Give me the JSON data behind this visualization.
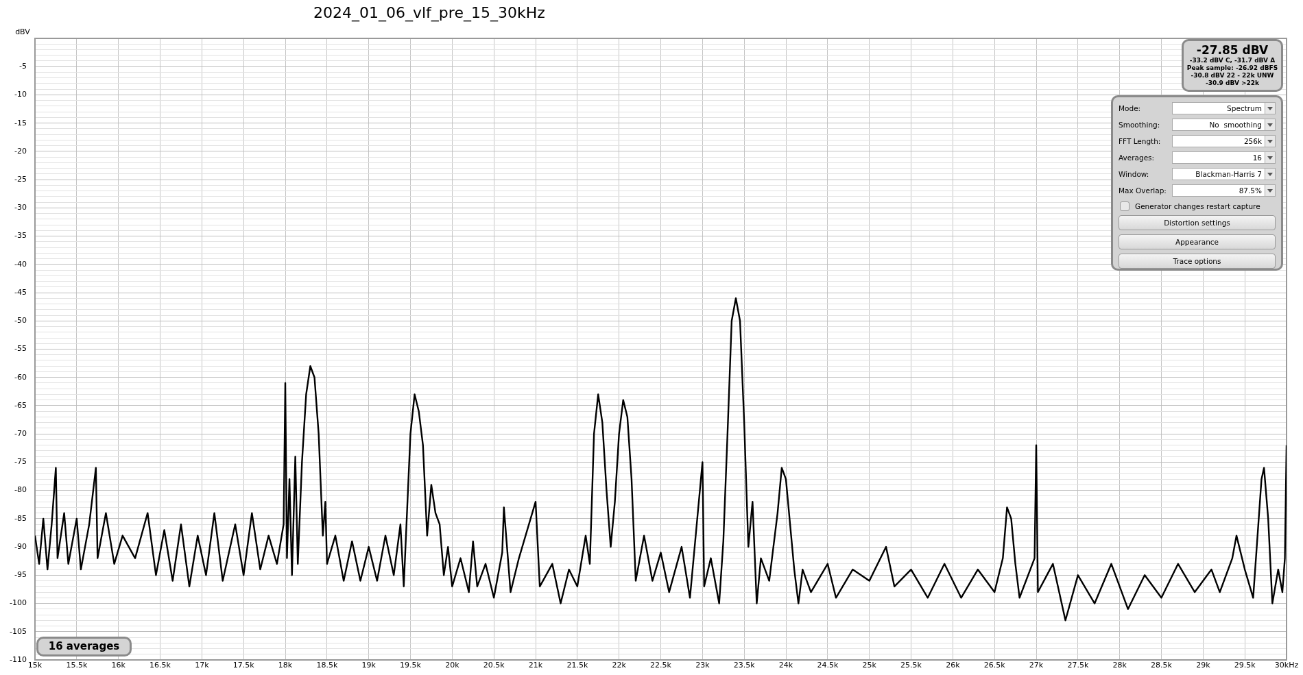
{
  "chart_data": {
    "type": "line",
    "title": "2024_01_06_vlf_pre_15_30kHz",
    "ylabel": "dBV",
    "x": [
      15.0,
      15.05,
      15.1,
      15.15,
      15.2,
      15.25,
      15.27,
      15.35,
      15.4,
      15.5,
      15.55,
      15.65,
      15.73,
      15.75,
      15.85,
      15.95,
      16.05,
      16.2,
      16.35,
      16.45,
      16.55,
      16.65,
      16.75,
      16.85,
      16.95,
      17.05,
      17.15,
      17.25,
      17.4,
      17.5,
      17.6,
      17.7,
      17.8,
      17.9,
      17.98,
      18.0,
      18.02,
      18.05,
      18.08,
      18.12,
      18.15,
      18.2,
      18.25,
      18.3,
      18.35,
      18.4,
      18.45,
      18.48,
      18.5,
      18.6,
      18.7,
      18.8,
      18.9,
      19.0,
      19.1,
      19.2,
      19.3,
      19.38,
      19.42,
      19.5,
      19.55,
      19.6,
      19.65,
      19.7,
      19.75,
      19.8,
      19.85,
      19.9,
      19.95,
      20.0,
      20.1,
      20.2,
      20.25,
      20.3,
      20.4,
      20.5,
      20.6,
      20.62,
      20.7,
      20.8,
      21.0,
      21.05,
      21.2,
      21.3,
      21.4,
      21.5,
      21.6,
      21.65,
      21.7,
      21.75,
      21.8,
      21.85,
      21.9,
      21.95,
      22.0,
      22.05,
      22.1,
      22.15,
      22.2,
      22.3,
      22.4,
      22.5,
      22.6,
      22.75,
      22.85,
      23.0,
      23.02,
      23.1,
      23.2,
      23.25,
      23.3,
      23.35,
      23.4,
      23.45,
      23.5,
      23.55,
      23.6,
      23.65,
      23.7,
      23.8,
      23.9,
      23.95,
      24.0,
      24.05,
      24.1,
      24.15,
      24.2,
      24.3,
      24.5,
      24.6,
      24.8,
      25.0,
      25.2,
      25.3,
      25.5,
      25.7,
      25.9,
      26.1,
      26.3,
      26.5,
      26.6,
      26.65,
      26.7,
      26.75,
      26.8,
      26.98,
      27.0,
      27.02,
      27.2,
      27.35,
      27.5,
      27.7,
      27.9,
      28.1,
      28.3,
      28.5,
      28.7,
      28.9,
      29.1,
      29.2,
      29.35,
      29.4,
      29.5,
      29.6,
      29.7,
      29.73,
      29.78,
      29.83,
      29.9,
      29.95,
      29.98,
      30.0
    ],
    "series": [
      {
        "color": "#000000",
        "values": [
          -88,
          -93,
          -85,
          -94,
          -86,
          -76,
          -92,
          -84,
          -93,
          -85,
          -94,
          -86,
          -76,
          -92,
          -84,
          -93,
          -88,
          -92,
          -84,
          -95,
          -87,
          -96,
          -86,
          -97,
          -88,
          -95,
          -84,
          -96,
          -86,
          -95,
          -84,
          -94,
          -88,
          -93,
          -86,
          -61,
          -92,
          -78,
          -95,
          -74,
          -93,
          -75,
          -63,
          -58,
          -60,
          -70,
          -88,
          -82,
          -93,
          -88,
          -96,
          -89,
          -96,
          -90,
          -96,
          -88,
          -95,
          -86,
          -97,
          -70,
          -63,
          -66,
          -72,
          -88,
          -79,
          -84,
          -86,
          -95,
          -90,
          -97,
          -92,
          -98,
          -89,
          -97,
          -93,
          -99,
          -91,
          -83,
          -98,
          -92,
          -82,
          -97,
          -93,
          -100,
          -94,
          -97,
          -88,
          -93,
          -70,
          -63,
          -68,
          -80,
          -90,
          -82,
          -70,
          -64,
          -67,
          -78,
          -96,
          -88,
          -96,
          -91,
          -98,
          -90,
          -99,
          -75,
          -97,
          -92,
          -100,
          -89,
          -70,
          -50,
          -46,
          -50,
          -68,
          -90,
          -82,
          -100,
          -92,
          -96,
          -84,
          -76,
          -78,
          -86,
          -94,
          -100,
          -94,
          -98,
          -93,
          -99,
          -94,
          -96,
          -90,
          -97,
          -94,
          -99,
          -93,
          -99,
          -94,
          -98,
          -92,
          -83,
          -85,
          -93,
          -99,
          -92,
          -72,
          -98,
          -93,
          -103,
          -95,
          -100,
          -93,
          -101,
          -95,
          -99,
          -93,
          -98,
          -94,
          -98,
          -92,
          -88,
          -94,
          -99,
          -78,
          -76,
          -85,
          -100,
          -94,
          -98,
          -92,
          -72
        ]
      }
    ],
    "xlim": [
      15,
      30
    ],
    "xticks": [
      {
        "value": 15,
        "label": "15k"
      },
      {
        "value": 15.5,
        "label": "15.5k"
      },
      {
        "value": 16,
        "label": "16k"
      },
      {
        "value": 16.5,
        "label": "16.5k"
      },
      {
        "value": 17,
        "label": "17k"
      },
      {
        "value": 17.5,
        "label": "17.5k"
      },
      {
        "value": 18,
        "label": "18k"
      },
      {
        "value": 18.5,
        "label": "18.5k"
      },
      {
        "value": 19,
        "label": "19k"
      },
      {
        "value": 19.5,
        "label": "19.5k"
      },
      {
        "value": 20,
        "label": "20k"
      },
      {
        "value": 20.5,
        "label": "20.5k"
      },
      {
        "value": 21,
        "label": "21k"
      },
      {
        "value": 21.5,
        "label": "21.5k"
      },
      {
        "value": 22,
        "label": "22k"
      },
      {
        "value": 22.5,
        "label": "22.5k"
      },
      {
        "value": 23,
        "label": "23k"
      },
      {
        "value": 23.5,
        "label": "23.5k"
      },
      {
        "value": 24,
        "label": "24k"
      },
      {
        "value": 24.5,
        "label": "24.5k"
      },
      {
        "value": 25,
        "label": "25k"
      },
      {
        "value": 25.5,
        "label": "25.5k"
      },
      {
        "value": 26,
        "label": "26k"
      },
      {
        "value": 26.5,
        "label": "26.5k"
      },
      {
        "value": 27,
        "label": "27k"
      },
      {
        "value": 27.5,
        "label": "27.5k"
      },
      {
        "value": 28,
        "label": "28k"
      },
      {
        "value": 28.5,
        "label": "28.5k"
      },
      {
        "value": 29,
        "label": "29k"
      },
      {
        "value": 29.5,
        "label": "29.5k"
      },
      {
        "value": 30,
        "label": "30kHz"
      }
    ],
    "ylim": [
      -110,
      0
    ],
    "yticks": [
      {
        "value": 0,
        "label": null
      },
      {
        "value": -1,
        "label": null
      },
      {
        "value": -2,
        "label": null
      },
      {
        "value": -3,
        "label": null
      },
      {
        "value": -4,
        "label": null
      },
      -5,
      {
        "value": -6,
        "label": null
      },
      {
        "value": -7,
        "label": null
      },
      {
        "value": -8,
        "label": null
      },
      {
        "value": -9,
        "label": null
      },
      -10,
      {
        "value": -11,
        "label": null
      },
      {
        "value": -12,
        "label": null
      },
      {
        "value": -13,
        "label": null
      },
      {
        "value": -14,
        "label": null
      },
      -15,
      {
        "value": -16,
        "label": null
      },
      {
        "value": -17,
        "label": null
      },
      {
        "value": -18,
        "label": null
      },
      {
        "value": -19,
        "label": null
      },
      -20,
      {
        "value": -21,
        "label": null
      },
      {
        "value": -22,
        "label": null
      },
      {
        "value": -23,
        "label": null
      },
      {
        "value": -24,
        "label": null
      },
      -25,
      {
        "value": -26,
        "label": null
      },
      {
        "value": -27,
        "label": null
      },
      {
        "value": -28,
        "label": null
      },
      {
        "value": -29,
        "label": null
      },
      -30,
      {
        "value": -31,
        "label": null
      },
      {
        "value": -32,
        "label": null
      },
      {
        "value": -33,
        "label": null
      },
      {
        "value": -34,
        "label": null
      },
      -35,
      {
        "value": -36,
        "label": null
      },
      {
        "value": -37,
        "label": null
      },
      {
        "value": -38,
        "label": null
      },
      {
        "value": -39,
        "label": null
      },
      -40,
      {
        "value": -41,
        "label": null
      },
      {
        "value": -42,
        "label": null
      },
      {
        "value": -43,
        "label": null
      },
      {
        "value": -44,
        "label": null
      },
      -45,
      {
        "value": -46,
        "label": null
      },
      {
        "value": -47,
        "label": null
      },
      {
        "value": -48,
        "label": null
      },
      {
        "value": -49,
        "label": null
      },
      -50,
      {
        "value": -51,
        "label": null
      },
      {
        "value": -52,
        "label": null
      },
      {
        "value": -53,
        "label": null
      },
      {
        "value": -54,
        "label": null
      },
      -55,
      {
        "value": -56,
        "label": null
      },
      {
        "value": -57,
        "label": null
      },
      {
        "value": -58,
        "label": null
      },
      {
        "value": -59,
        "label": null
      },
      -60,
      {
        "value": -61,
        "label": null
      },
      {
        "value": -62,
        "label": null
      },
      {
        "value": -63,
        "label": null
      },
      {
        "value": -64,
        "label": null
      },
      -65,
      {
        "value": -66,
        "label": null
      },
      {
        "value": -67,
        "label": null
      },
      {
        "value": -68,
        "label": null
      },
      {
        "value": -69,
        "label": null
      },
      -70,
      {
        "value": -71,
        "label": null
      },
      {
        "value": -72,
        "label": null
      },
      {
        "value": -73,
        "label": null
      },
      {
        "value": -74,
        "label": null
      },
      -75,
      {
        "value": -76,
        "label": null
      },
      {
        "value": -77,
        "label": null
      },
      {
        "value": -78,
        "label": null
      },
      {
        "value": -79,
        "label": null
      },
      -80,
      {
        "value": -81,
        "label": null
      },
      {
        "value": -82,
        "label": null
      },
      {
        "value": -83,
        "label": null
      },
      {
        "value": -84,
        "label": null
      },
      -85,
      {
        "value": -86,
        "label": null
      },
      {
        "value": -87,
        "label": null
      },
      {
        "value": -88,
        "label": null
      },
      {
        "value": -89,
        "label": null
      },
      -90,
      {
        "value": -91,
        "label": null
      },
      {
        "value": -92,
        "label": null
      },
      {
        "value": -93,
        "label": null
      },
      {
        "value": -94,
        "label": null
      },
      -95,
      {
        "value": -96,
        "label": null
      },
      {
        "value": -97,
        "label": null
      },
      {
        "value": -98,
        "label": null
      },
      {
        "value": -99,
        "label": null
      },
      -100,
      {
        "value": -101,
        "label": null
      },
      {
        "value": -102,
        "label": null
      },
      {
        "value": -103,
        "label": null
      },
      {
        "value": -104,
        "label": null
      },
      -105,
      {
        "value": -106,
        "label": null
      },
      {
        "value": -107,
        "label": null
      },
      {
        "value": -108,
        "label": null
      },
      {
        "value": -109,
        "label": null
      },
      -110
    ],
    "grid": true,
    "legend": false,
    "marker": "none",
    "line_style": "solid",
    "annotations": [
      "-27.85 dBV",
      "-33.2 dBV C, -31.7 dBV A",
      "Peak sample: -26.92 dBFS",
      "-30.8 dBV 22 - 22k UNW",
      "-30.9 dBV >22k",
      "Mode:",
      "Spectrum",
      "Smoothing:",
      "No  smoothing",
      "FFT Length:",
      "256k",
      "Averages:",
      "16",
      "Window:",
      "Blackman-Harris 7",
      "Max Overlap:",
      "87.5%",
      "Generator changes restart capture",
      "Distortion settings",
      "Appearance",
      "Trace options",
      "16 averages"
    ]
  }
}
